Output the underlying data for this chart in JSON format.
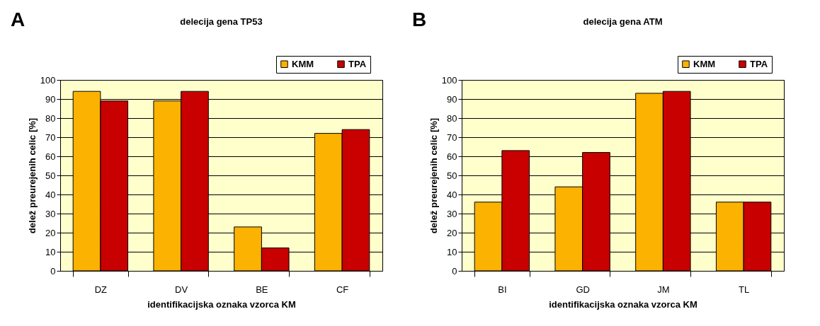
{
  "chart_data": [
    {
      "type": "bar",
      "title": "delecija gena TP53",
      "xlabel": "identifikacijska oznaka vzorca KM",
      "ylabel": "delež preurejenih celic [%]",
      "annotations": [
        "A"
      ],
      "categories": [
        "DZ",
        "DV",
        "BE",
        "CF"
      ],
      "series": [
        {
          "name": "KMM",
          "color": "#fbb200",
          "values": [
            94,
            89,
            23,
            72
          ]
        },
        {
          "name": "TPA",
          "color": "#c80000",
          "values": [
            89,
            94,
            12,
            74
          ]
        }
      ],
      "ylim": [
        0,
        100
      ],
      "yticks": [
        0,
        10,
        20,
        30,
        40,
        50,
        60,
        70,
        80,
        90,
        100
      ],
      "grid": "y",
      "legend": "top right"
    },
    {
      "type": "bar",
      "title": "delecija gena ATM",
      "xlabel": "identifikacijska oznaka vzorca KM",
      "ylabel": "delež preurejenih celic [%]",
      "annotations": [
        "B"
      ],
      "categories": [
        "BI",
        "GD",
        "JM",
        "TL"
      ],
      "series": [
        {
          "name": "KMM",
          "color": "#fbb200",
          "values": [
            36,
            44,
            93,
            36
          ]
        },
        {
          "name": "TPA",
          "color": "#c80000",
          "values": [
            63,
            62,
            94,
            36
          ]
        }
      ],
      "ylim": [
        0,
        100
      ],
      "yticks": [
        0,
        10,
        20,
        30,
        40,
        50,
        60,
        70,
        80,
        90,
        100
      ],
      "grid": "y",
      "legend": "top right"
    }
  ]
}
